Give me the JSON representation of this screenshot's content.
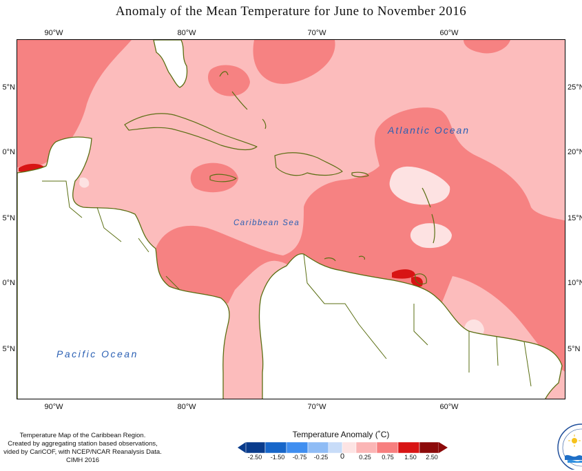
{
  "title": "Anomaly of the Mean Temperature for June to November 2016",
  "axes": {
    "top_longitudes": [
      "90°W",
      "80°W",
      "70°W",
      "60°W"
    ],
    "bottom_longitudes": [
      "90°W",
      "80°W",
      "70°W",
      "60°W"
    ],
    "left_latitudes": [
      "5°N",
      "0°N",
      "5°N",
      "0°N",
      "5°N"
    ],
    "right_latitudes": [
      "25°N",
      "20°N",
      "15°N",
      "10°N",
      "5°N"
    ]
  },
  "ocean_labels": {
    "atlantic": "Atlantic Ocean",
    "caribbean": "Caribbean Sea",
    "pacific": "Pacific Ocean"
  },
  "credits": [
    "Temperature Map of the Caribbean Region.",
    "Created by aggregating station based observations,",
    "vided by CariCOF, with NCEP/NCAR Reanalysis Data.",
    "CIMH 2016"
  ],
  "legend": {
    "title": "Temperature Anomaly (˚C)",
    "values": [
      "-2.50",
      "-1.50",
      "-0.75",
      "-0.25",
      "0",
      "0.25",
      "0.75",
      "1.50",
      "2.50"
    ],
    "colors": [
      "#0a3c8c",
      "#1766c9",
      "#3f8ef0",
      "#8fbcf5",
      "#c8dcf8",
      "#fde4e4",
      "#fbb5b5",
      "#f77f7f",
      "#d81414",
      "#8c0a0a"
    ]
  },
  "map_colors": {
    "land": "#ffffff",
    "coast": "#5a6e12",
    "anom_light": "#fcbcbc",
    "anom_mid": "#f68282",
    "anom_faint": "#fde2e2",
    "anom_high": "#d81414"
  }
}
